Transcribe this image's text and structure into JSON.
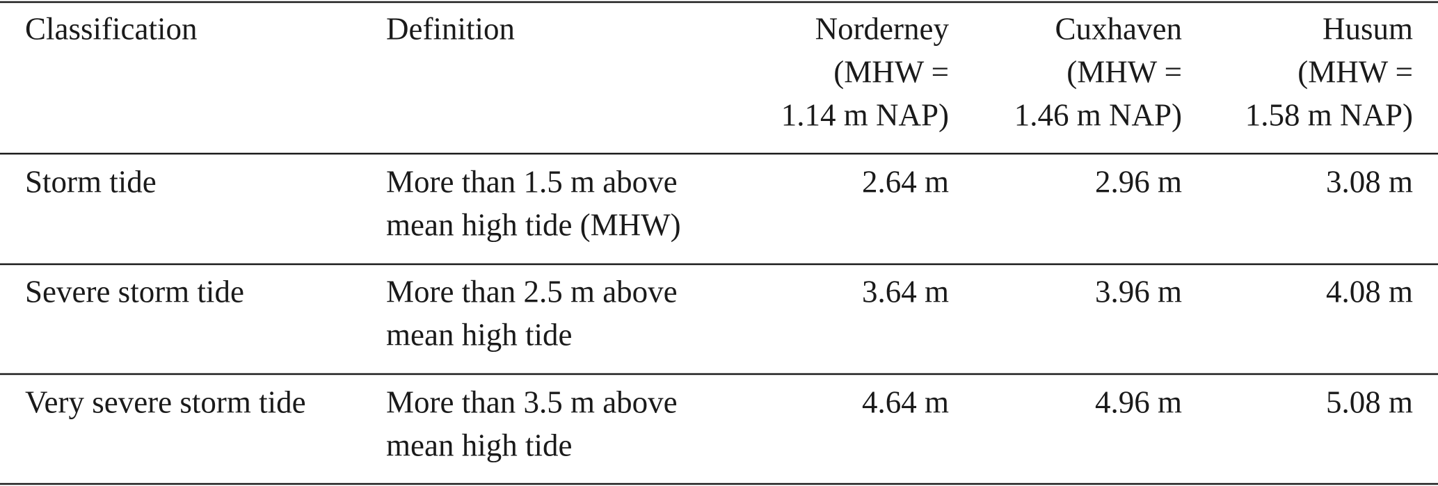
{
  "table": {
    "header": [
      [
        "Classification"
      ],
      [
        "Definition"
      ],
      [
        "Norderney",
        "(MHW =",
        "1.14 m NAP)"
      ],
      [
        "Cuxhaven",
        "(MHW =",
        "1.46 m NAP)"
      ],
      [
        "Husum",
        "(MHW =",
        "1.58 m NAP)"
      ]
    ],
    "rows": [
      [
        [
          "Storm tide"
        ],
        [
          "More than 1.5 m above",
          "mean high tide (MHW)"
        ],
        [
          "2.64 m"
        ],
        [
          "2.96 m"
        ],
        [
          "3.08 m"
        ]
      ],
      [
        [
          "Severe storm tide"
        ],
        [
          "More than 2.5 m above",
          "mean high tide"
        ],
        [
          "3.64 m"
        ],
        [
          "3.96 m"
        ],
        [
          "4.08 m"
        ]
      ],
      [
        [
          "Very severe storm tide"
        ],
        [
          "More than 3.5 m above",
          "mean high tide"
        ],
        [
          "4.64 m"
        ],
        [
          "4.96 m"
        ],
        [
          "5.08 m"
        ]
      ]
    ]
  }
}
